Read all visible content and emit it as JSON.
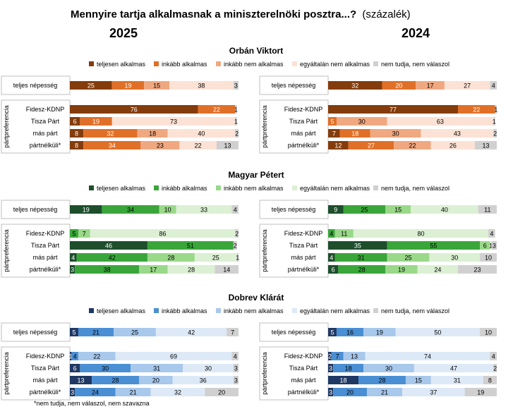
{
  "title": "Mennyire tartja alkalmasnak a miniszterelnöki posztra...?",
  "title_suffix": "(százalék)",
  "year_left": "2025",
  "year_right": "2024",
  "row_labels": [
    "teljes népesség",
    "Fidesz-KDNP",
    "Tisza Párt",
    "más párt",
    "pártnélküli*"
  ],
  "side_label": "pártpreferencia",
  "footnote": "*nem tudja, nem válaszol, nem szavazna",
  "legend_labels": [
    "teljesen alkalmas",
    "inkább alkalmas",
    "inkább nem alkalmas",
    "egyáltalán nem alkalmas",
    "nem tudja, nem válaszol"
  ],
  "chart_data": [
    {
      "type": "bar",
      "stacked": true,
      "orientation": "horizontal",
      "title": "Orbán Viktort",
      "year": "2025",
      "categories": [
        "teljes népesség",
        "Fidesz-KDNP",
        "Tisza Párt",
        "más párt",
        "pártnélküli*"
      ],
      "colors": [
        "#843c0c",
        "#e07028",
        "#f0a880",
        "#fbe2d5",
        "#d0d0d0"
      ],
      "series": [
        {
          "name": "teljesen alkalmas",
          "values": [
            25,
            76,
            6,
            8,
            8
          ]
        },
        {
          "name": "inkább alkalmas",
          "values": [
            19,
            22,
            19,
            32,
            34
          ]
        },
        {
          "name": "inkább nem alkalmas",
          "values": [
            15,
            0,
            0,
            18,
            23
          ]
        },
        {
          "name": "egyáltalán nem alkalmas",
          "values": [
            38,
            0,
            73,
            40,
            22
          ]
        },
        {
          "name": "nem tudja, nem válaszol",
          "values": [
            3,
            1,
            1,
            2,
            13
          ]
        }
      ]
    },
    {
      "type": "bar",
      "stacked": true,
      "orientation": "horizontal",
      "title": "Orbán Viktort",
      "year": "2024",
      "categories": [
        "teljes népesség",
        "Fidesz-KDNP",
        "Tisza Párt",
        "más párt",
        "pártnélküli*"
      ],
      "colors": [
        "#843c0c",
        "#e07028",
        "#f0a880",
        "#fbe2d5",
        "#d0d0d0"
      ],
      "series": [
        {
          "name": "teljesen alkalmas",
          "values": [
            32,
            77,
            0,
            7,
            12
          ]
        },
        {
          "name": "inkább alkalmas",
          "values": [
            20,
            22,
            5,
            18,
            27
          ]
        },
        {
          "name": "inkább nem alkalmas",
          "values": [
            17,
            0,
            30,
            30,
            22
          ]
        },
        {
          "name": "egyáltalán nem alkalmas",
          "values": [
            27,
            0,
            63,
            43,
            26
          ]
        },
        {
          "name": "nem tudja, nem válaszol",
          "values": [
            4,
            1,
            1,
            2,
            13
          ]
        }
      ]
    },
    {
      "type": "bar",
      "stacked": true,
      "orientation": "horizontal",
      "title": "Magyar Pétert",
      "year": "2025",
      "categories": [
        "teljes népesség",
        "Fidesz-KDNP",
        "Tisza Párt",
        "más párt",
        "pártnélküli*"
      ],
      "colors": [
        "#1e4e2c",
        "#3aa63a",
        "#9ad88a",
        "#dcf0d4",
        "#d0d0d0"
      ],
      "series": [
        {
          "name": "teljesen alkalmas",
          "values": [
            19,
            0,
            46,
            4,
            3
          ]
        },
        {
          "name": "inkább alkalmas",
          "values": [
            34,
            5,
            51,
            42,
            38
          ]
        },
        {
          "name": "inkább nem alkalmas",
          "values": [
            10,
            7,
            0,
            28,
            17
          ]
        },
        {
          "name": "egyáltalán nem alkalmas",
          "values": [
            33,
            86,
            0,
            25,
            28
          ]
        },
        {
          "name": "nem tudja, nem válaszol",
          "values": [
            4,
            2,
            2,
            1,
            14
          ]
        }
      ]
    },
    {
      "type": "bar",
      "stacked": true,
      "orientation": "horizontal",
      "title": "Magyar Pétert",
      "year": "2024",
      "categories": [
        "teljes népesség",
        "Fidesz-KDNP",
        "Tisza Párt",
        "más párt",
        "pártnélküli*"
      ],
      "colors": [
        "#1e4e2c",
        "#3aa63a",
        "#9ad88a",
        "#dcf0d4",
        "#d0d0d0"
      ],
      "series": [
        {
          "name": "teljesen alkalmas",
          "values": [
            9,
            0,
            35,
            4,
            6
          ]
        },
        {
          "name": "inkább alkalmas",
          "values": [
            25,
            4,
            55,
            31,
            28
          ]
        },
        {
          "name": "inkább nem alkalmas",
          "values": [
            15,
            11,
            6,
            25,
            19
          ]
        },
        {
          "name": "egyáltalán nem alkalmas",
          "values": [
            40,
            80,
            1,
            30,
            24
          ]
        },
        {
          "name": "nem tudja, nem válaszol",
          "values": [
            11,
            4,
            3,
            10,
            23
          ]
        }
      ]
    },
    {
      "type": "bar",
      "stacked": true,
      "orientation": "horizontal",
      "title": "Dobrev Klárát",
      "year": "2025",
      "categories": [
        "teljes népesség",
        "Fidesz-KDNP",
        "Tisza Párt",
        "más párt",
        "pártnélküli*"
      ],
      "colors": [
        "#1f3864",
        "#4a8fd4",
        "#a8c8ec",
        "#dde9f6",
        "#d0d0d0"
      ],
      "series": [
        {
          "name": "teljesen alkalmas",
          "values": [
            5,
            1,
            6,
            13,
            3
          ]
        },
        {
          "name": "inkább alkalmas",
          "values": [
            21,
            4,
            30,
            28,
            24
          ]
        },
        {
          "name": "inkább nem alkalmas",
          "values": [
            25,
            22,
            31,
            20,
            21
          ]
        },
        {
          "name": "egyáltalán nem alkalmas",
          "values": [
            42,
            69,
            30,
            36,
            32
          ]
        },
        {
          "name": "nem tudja, nem válaszol",
          "values": [
            7,
            4,
            3,
            3,
            20
          ]
        }
      ]
    },
    {
      "type": "bar",
      "stacked": true,
      "orientation": "horizontal",
      "title": "Dobrev Klárát",
      "year": "2024",
      "categories": [
        "teljes népesség",
        "Fidesz-KDNP",
        "Tisza Párt",
        "más párt",
        "pártnélküli*"
      ],
      "colors": [
        "#1f3864",
        "#4a8fd4",
        "#a8c8ec",
        "#dde9f6",
        "#d0d0d0"
      ],
      "series": [
        {
          "name": "teljesen alkalmas",
          "values": [
            5,
            2,
            3,
            18,
            3
          ]
        },
        {
          "name": "inkább alkalmas",
          "values": [
            16,
            7,
            18,
            28,
            20
          ]
        },
        {
          "name": "inkább nem alkalmas",
          "values": [
            19,
            13,
            30,
            15,
            21
          ]
        },
        {
          "name": "egyáltalán nem alkalmas",
          "values": [
            50,
            74,
            47,
            31,
            37
          ]
        },
        {
          "name": "nem tudja, nem válaszol",
          "values": [
            10,
            4,
            2,
            8,
            19
          ]
        }
      ]
    }
  ]
}
